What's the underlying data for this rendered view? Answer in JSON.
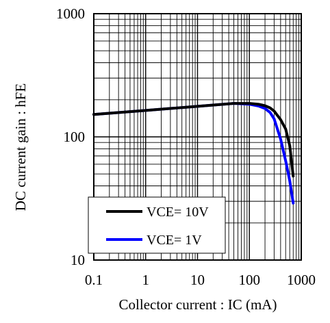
{
  "chart_data": {
    "type": "line",
    "title": "",
    "xlabel": "Collector current : IC (mA)",
    "ylabel": "DC current gain : hFE",
    "x_scale": "log",
    "y_scale": "log",
    "xlim": [
      0.1,
      1000
    ],
    "ylim": [
      10,
      1000
    ],
    "x_ticks": [
      0.1,
      1,
      10,
      100,
      1000
    ],
    "x_tick_labels": [
      "0.1",
      "1",
      "10",
      "100",
      "1000"
    ],
    "y_ticks": [
      10,
      100,
      1000
    ],
    "y_tick_labels": [
      "10",
      "100",
      "1000"
    ],
    "grid": true,
    "legend_position": "bottom-left",
    "series": [
      {
        "name": "VCE= 10V",
        "color": "#000000",
        "x": [
          0.1,
          1,
          10,
          50,
          100,
          150,
          200,
          250,
          300,
          400,
          500,
          600,
          700
        ],
        "y": [
          152,
          164,
          177,
          187,
          187,
          184,
          179,
          172,
          162,
          138,
          116,
          85,
          48
        ]
      },
      {
        "name": "VCE= 1V",
        "color": "#0000ff",
        "x": [
          0.1,
          1,
          10,
          50,
          100,
          150,
          200,
          250,
          300,
          400,
          500,
          600,
          700
        ],
        "y": [
          152,
          164,
          177,
          187,
          184,
          178,
          170,
          158,
          140,
          96,
          64,
          44,
          29
        ]
      }
    ]
  }
}
